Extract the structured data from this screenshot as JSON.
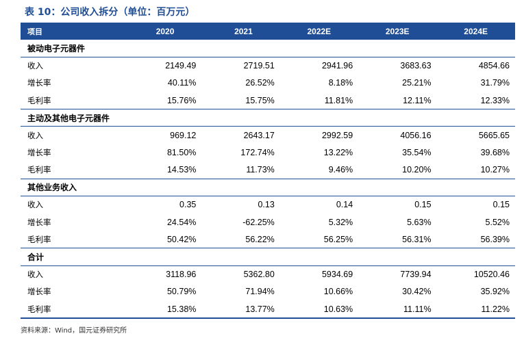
{
  "title": "表 10：公司收入拆分（单位：百万元）",
  "header": {
    "label": "项目",
    "years": [
      "2020",
      "2021",
      "2022E",
      "2023E",
      "2024E"
    ]
  },
  "sections": [
    {
      "name": "被动电子元器件",
      "rows": [
        {
          "label": "收入",
          "values": [
            "2149.49",
            "2719.51",
            "2941.96",
            "3683.63",
            "4854.66"
          ]
        },
        {
          "label": "增长率",
          "values": [
            "40.11%",
            "26.52%",
            "8.18%",
            "25.21%",
            "31.79%"
          ]
        },
        {
          "label": "毛利率",
          "values": [
            "15.76%",
            "15.75%",
            "11.81%",
            "12.11%",
            "12.33%"
          ]
        }
      ]
    },
    {
      "name": "主动及其他电子元器件",
      "rows": [
        {
          "label": "收入",
          "values": [
            "969.12",
            "2643.17",
            "2992.59",
            "4056.16",
            "5665.65"
          ]
        },
        {
          "label": "增长率",
          "values": [
            "81.50%",
            "172.74%",
            "13.22%",
            "35.54%",
            "39.68%"
          ]
        },
        {
          "label": "毛利率",
          "values": [
            "14.53%",
            "11.73%",
            "9.46%",
            "10.20%",
            "10.27%"
          ]
        }
      ]
    },
    {
      "name": "其他业务收入",
      "rows": [
        {
          "label": "收入",
          "values": [
            "0.35",
            "0.13",
            "0.14",
            "0.15",
            "0.15"
          ]
        },
        {
          "label": "增长率",
          "values": [
            "24.54%",
            "-62.25%",
            "5.32%",
            "5.63%",
            "5.52%"
          ]
        },
        {
          "label": "毛利率",
          "values": [
            "50.42%",
            "56.22%",
            "56.25%",
            "56.31%",
            "56.39%"
          ]
        }
      ]
    },
    {
      "name": "合计",
      "rows": [
        {
          "label": "收入",
          "values": [
            "3118.96",
            "5362.80",
            "5934.69",
            "7739.94",
            "10520.46"
          ]
        },
        {
          "label": "增长率",
          "values": [
            "50.79%",
            "71.94%",
            "10.66%",
            "30.42%",
            "35.92%"
          ]
        },
        {
          "label": "毛利率",
          "values": [
            "15.38%",
            "13.77%",
            "10.63%",
            "11.11%",
            "11.22%"
          ]
        }
      ]
    }
  ],
  "source": "资料来源：Wind，国元证券研究所",
  "colors": {
    "accent": "#1f4e96",
    "header_text": "#ffffff"
  }
}
